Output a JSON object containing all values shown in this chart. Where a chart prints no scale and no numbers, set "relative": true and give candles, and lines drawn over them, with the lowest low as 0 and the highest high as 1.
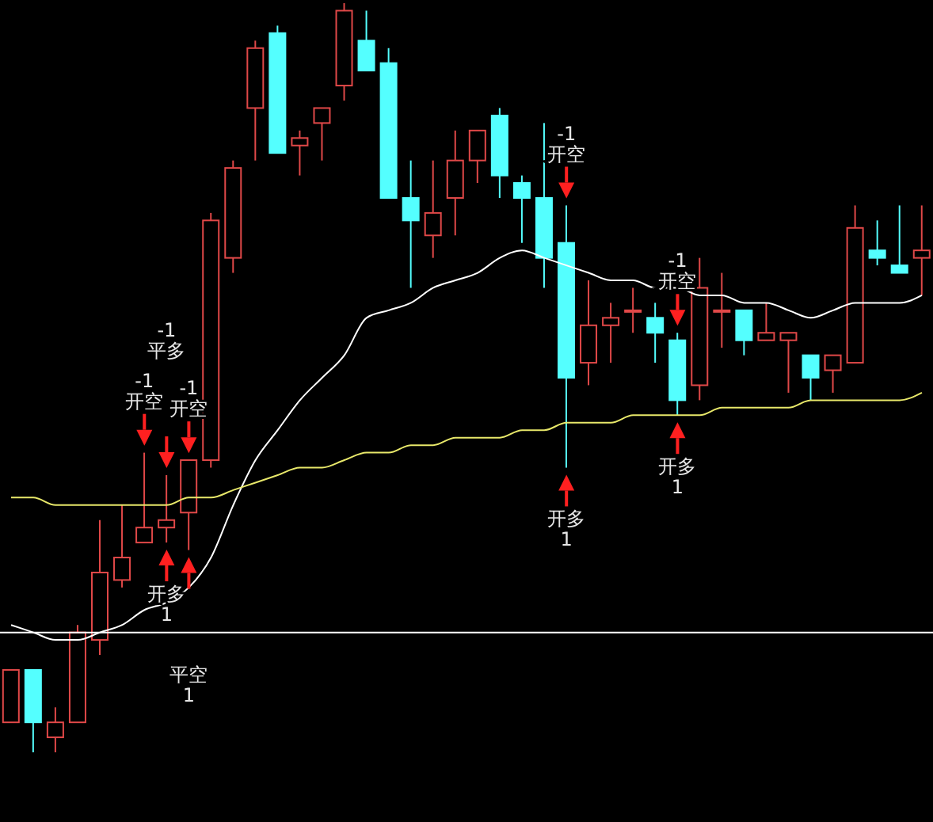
{
  "chart_data": {
    "type": "candlestick",
    "relative": true,
    "tick_labels": false,
    "grid": false,
    "legend": false,
    "categories": [
      null,
      null,
      null,
      null,
      null,
      null,
      null,
      null,
      null,
      null,
      null,
      null,
      null,
      null,
      null,
      null,
      null,
      null,
      null,
      null,
      null,
      null,
      null,
      null,
      null,
      null,
      null,
      null,
      null,
      null,
      null,
      null,
      null,
      null,
      null,
      null,
      null,
      null,
      null,
      null,
      null,
      null
    ],
    "ohlc": [
      [
        0.04,
        0.11,
        0.04,
        0.11
      ],
      [
        0.11,
        0.11,
        0,
        0.04
      ],
      [
        0.02,
        0.06,
        0,
        0.04
      ],
      [
        0.04,
        0.17,
        0.04,
        0.16
      ],
      [
        0.15,
        0.31,
        0.13,
        0.24
      ],
      [
        0.23,
        0.33,
        0.22,
        0.26
      ],
      [
        0.28,
        0.4,
        0.28,
        0.3
      ],
      [
        0.3,
        0.37,
        0.28,
        0.31
      ],
      [
        0.32,
        0.39,
        0.27,
        0.39
      ],
      [
        0.39,
        0.72,
        0.38,
        0.71
      ],
      [
        0.66,
        0.79,
        0.64,
        0.78
      ],
      [
        0.86,
        0.95,
        0.79,
        0.94
      ],
      [
        0.96,
        0.97,
        0.8,
        0.8
      ],
      [
        0.81,
        0.83,
        0.77,
        0.82
      ],
      [
        0.84,
        0.86,
        0.79,
        0.86
      ],
      [
        0.89,
        1,
        0.87,
        0.99
      ],
      [
        0.95,
        0.99,
        0.91,
        0.91
      ],
      [
        0.92,
        0.94,
        0.74,
        0.74
      ],
      [
        0.74,
        0.79,
        0.62,
        0.71
      ],
      [
        0.69,
        0.79,
        0.66,
        0.72
      ],
      [
        0.74,
        0.83,
        0.69,
        0.79
      ],
      [
        0.79,
        0.83,
        0.76,
        0.83
      ],
      [
        0.85,
        0.86,
        0.74,
        0.77
      ],
      [
        0.76,
        0.77,
        0.68,
        0.74
      ],
      [
        0.74,
        0.84,
        0.62,
        0.66
      ],
      [
        0.68,
        0.73,
        0.38,
        0.5
      ],
      [
        0.52,
        0.63,
        0.49,
        0.57
      ],
      [
        0.57,
        0.6,
        0.52,
        0.58
      ],
      [
        0.59,
        0.62,
        0.56,
        0.59
      ],
      [
        0.58,
        0.6,
        0.52,
        0.56
      ],
      [
        0.55,
        0.56,
        0.45,
        0.47
      ],
      [
        0.49,
        0.66,
        0.47,
        0.62
      ],
      [
        0.59,
        0.64,
        0.54,
        0.59
      ],
      [
        0.59,
        0.59,
        0.53,
        0.55
      ],
      [
        0.55,
        0.6,
        0.55,
        0.56
      ],
      [
        0.55,
        0.56,
        0.48,
        0.56
      ],
      [
        0.53,
        0.53,
        0.47,
        0.5
      ],
      [
        0.51,
        0.53,
        0.48,
        0.53
      ],
      [
        0.52,
        0.73,
        0.52,
        0.7
      ],
      [
        0.67,
        0.71,
        0.65,
        0.66
      ],
      [
        0.65,
        0.73,
        0.64,
        0.64
      ],
      [
        0.66,
        0.73,
        0.61,
        0.67
      ]
    ],
    "series": [
      {
        "type": "line",
        "color": "#ffffff",
        "values": [
          0.17,
          0.16,
          0.15,
          0.15,
          0.16,
          0.17,
          0.19,
          0.2,
          0.22,
          0.26,
          0.33,
          0.39,
          0.43,
          0.47,
          0.5,
          0.53,
          0.58,
          0.59,
          0.6,
          0.62,
          0.63,
          0.64,
          0.66,
          0.67,
          0.66,
          0.65,
          0.64,
          0.63,
          0.63,
          0.62,
          0.62,
          0.61,
          0.61,
          0.6,
          0.6,
          0.59,
          0.58,
          0.59,
          0.6,
          0.6,
          0.6,
          0.61
        ]
      },
      {
        "type": "line",
        "color": "#e8e86a",
        "values": [
          0.34,
          0.34,
          0.33,
          0.33,
          0.33,
          0.33,
          0.33,
          0.33,
          0.34,
          0.34,
          0.35,
          0.36,
          0.37,
          0.38,
          0.38,
          0.39,
          0.4,
          0.4,
          0.41,
          0.41,
          0.42,
          0.42,
          0.42,
          0.43,
          0.43,
          0.44,
          0.44,
          0.44,
          0.45,
          0.45,
          0.45,
          0.45,
          0.46,
          0.46,
          0.46,
          0.46,
          0.47,
          0.47,
          0.47,
          0.47,
          0.47,
          0.48
        ]
      },
      {
        "type": "scatter",
        "marker": "triangle",
        "color": "#ff2020",
        "values": [
          null,
          null,
          null,
          null,
          null,
          null,
          0.42,
          0.39,
          0.41,
          null,
          null,
          null,
          null,
          null,
          null,
          null,
          null,
          null,
          null,
          null,
          null,
          null,
          null,
          null,
          null,
          0.75,
          null,
          null,
          null,
          null,
          0.58,
          null,
          null,
          null,
          null,
          null,
          null,
          null,
          null,
          null,
          null,
          null
        ]
      },
      {
        "type": "scatter",
        "marker": "triangle",
        "color": "#ff2020",
        "values": [
          null,
          null,
          null,
          null,
          null,
          null,
          null,
          0.26,
          0.25,
          null,
          null,
          null,
          null,
          null,
          null,
          null,
          null,
          null,
          null,
          null,
          null,
          null,
          null,
          null,
          null,
          0.36,
          null,
          null,
          null,
          null,
          0.43,
          null,
          null,
          null,
          null,
          null,
          null,
          null,
          null,
          null,
          null,
          null
        ]
      }
    ],
    "annotations": [
      "-1\n开空",
      "-1\n平多",
      "-1\n开空",
      "-1\n开空",
      "-1\n开空",
      "开多\n1",
      "平空\n1",
      "开多\n1",
      "开多\n1"
    ],
    "ref_lines": [
      {
        "axis": "y",
        "value": 0.16,
        "color": "#ffffff"
      }
    ]
  }
}
